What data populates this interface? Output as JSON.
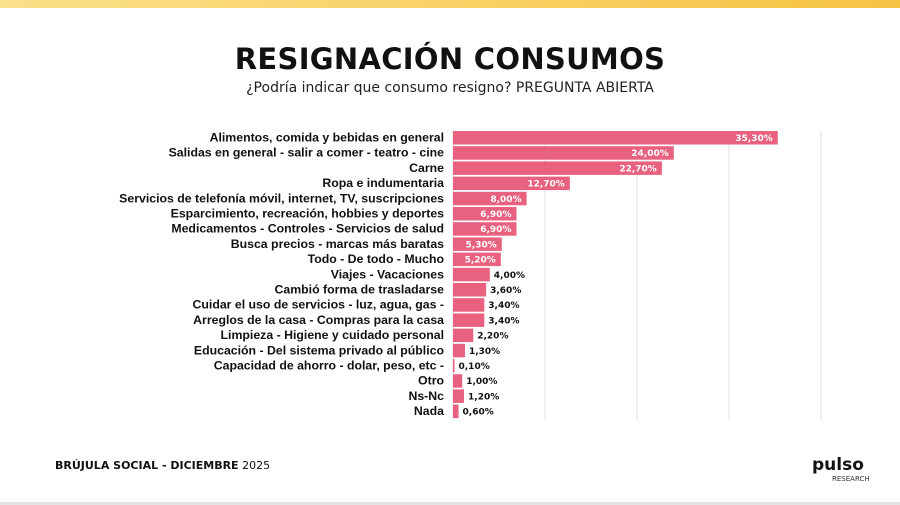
{
  "header": {
    "title": "RESIGNACIÓN CONSUMOS",
    "subtitle": "¿Podría indicar que consumo resigno?  PREGUNTA ABIERTA"
  },
  "footer": {
    "source_bold": "BRÚJULA SOCIAL - DICIEMBRE",
    "year": " 2025"
  },
  "logo": {
    "text": "pulso",
    "sub": "RESEARCH"
  },
  "colors": {
    "bar": "#e8617f",
    "accent": "#f6c343"
  },
  "chart_data": {
    "type": "bar",
    "orientation": "horizontal",
    "title": "RESIGNACIÓN CONSUMOS",
    "xlim": [
      0,
      40
    ],
    "grid": true,
    "categories": [
      "Alimentos, comida y bebidas en general",
      "Salidas en general - salir a comer - teatro - cine",
      "Carne",
      "Ropa e indumentaria",
      "Servicios de telefonía móvil, internet, TV, suscripciones",
      "Esparcimiento, recreación, hobbies y deportes",
      "Medicamentos - Controles - Servicios de salud",
      "Busca precios - marcas más baratas",
      "Todo - De todo - Mucho",
      "Viajes - Vacaciones",
      "Cambió forma de trasladarse",
      "Cuidar el uso de servicios - luz, agua, gas -",
      "Arreglos de la casa - Compras para la casa",
      "Limpieza - Higiene y cuidado personal",
      "Educación - Del sistema privado al público",
      "Capacidad de ahorro - dolar, peso, etc -",
      "Otro",
      "Ns-Nc",
      "Nada"
    ],
    "values": [
      35.3,
      24.0,
      22.7,
      12.7,
      8.0,
      6.9,
      6.9,
      5.3,
      5.2,
      4.0,
      3.6,
      3.4,
      3.4,
      2.2,
      1.3,
      0.1,
      1.0,
      1.2,
      0.6
    ],
    "labels": [
      "35,30%",
      "24,00%",
      "22,70%",
      "12,70%",
      "8,00%",
      "6,90%",
      "6,90%",
      "5,30%",
      "5,20%",
      "4,00%",
      "3,60%",
      "3,40%",
      "3,40%",
      "2,20%",
      "1,30%",
      "0,10%",
      "1,00%",
      "1,20%",
      "0,60%"
    ]
  }
}
